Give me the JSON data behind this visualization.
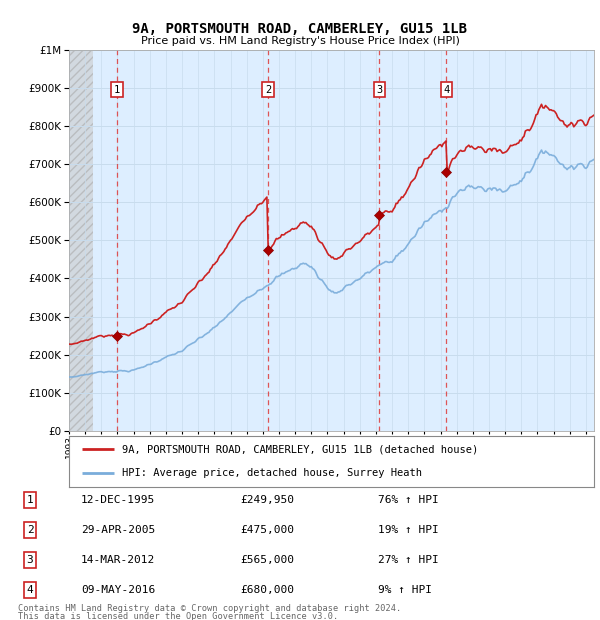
{
  "title": "9A, PORTSMOUTH ROAD, CAMBERLEY, GU15 1LB",
  "subtitle": "Price paid vs. HM Land Registry's House Price Index (HPI)",
  "legend_label_red": "9A, PORTSMOUTH ROAD, CAMBERLEY, GU15 1LB (detached house)",
  "legend_label_blue": "HPI: Average price, detached house, Surrey Heath",
  "footer_line1": "Contains HM Land Registry data © Crown copyright and database right 2024.",
  "footer_line2": "This data is licensed under the Open Government Licence v3.0.",
  "transactions": [
    {
      "num": 1,
      "date": "12-DEC-1995",
      "price": 249950,
      "pct": "76%",
      "year": 1995.96
    },
    {
      "num": 2,
      "date": "29-APR-2005",
      "price": 475000,
      "pct": "19%",
      "year": 2005.33
    },
    {
      "num": 3,
      "date": "14-MAR-2012",
      "price": 565000,
      "pct": "27%",
      "year": 2012.21
    },
    {
      "num": 4,
      "date": "09-MAY-2016",
      "price": 680000,
      "pct": "9%",
      "year": 2016.36
    }
  ],
  "hpi_line_color": "#7aaddb",
  "price_line_color": "#cc2222",
  "transaction_dot_color": "#aa0000",
  "grid_color": "#c8dced",
  "dashed_line_color": "#dd4444",
  "background_color": "#ffffff",
  "plot_bg_color": "#ddeeff",
  "ylim": [
    0,
    1000000
  ],
  "yticks": [
    0,
    100000,
    200000,
    300000,
    400000,
    500000,
    600000,
    700000,
    800000,
    900000,
    1000000
  ],
  "xlim_start": 1993.0,
  "xlim_end": 2025.5,
  "hatch_end": 1994.5
}
